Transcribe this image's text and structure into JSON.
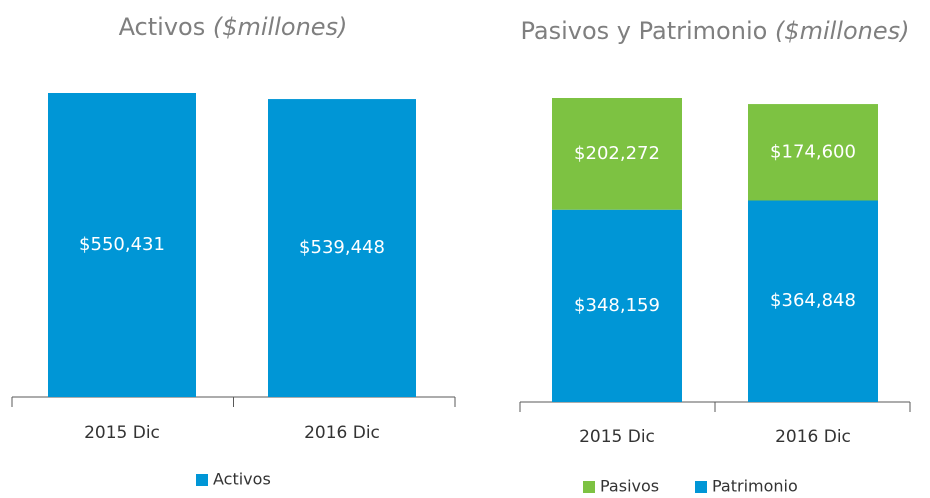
{
  "chart_data": [
    {
      "type": "bar",
      "title": "Activos",
      "title_unit": "($millones)",
      "categories": [
        "2015 Dic",
        "2016 Dic"
      ],
      "series": [
        {
          "name": "Activos",
          "color": "#0096d6",
          "values": [
            550431,
            539448
          ],
          "value_labels": [
            "$550,431",
            "$539,448"
          ]
        }
      ],
      "legend": "bottom"
    },
    {
      "type": "stacked_bar",
      "title": "Pasivos y Patrimonio",
      "title_unit": "($millones)",
      "categories": [
        "2015 Dic",
        "2016 Dic"
      ],
      "series": [
        {
          "name": "Pasivos",
          "color": "#7dc242",
          "values": [
            202272,
            174600
          ],
          "value_labels": [
            "$202,272",
            "$174,600"
          ]
        },
        {
          "name": "Patrimonio",
          "color": "#0096d6",
          "values": [
            348159,
            364848
          ],
          "value_labels": [
            "$348,159",
            "$364,848"
          ]
        }
      ],
      "legend": "bottom"
    }
  ]
}
